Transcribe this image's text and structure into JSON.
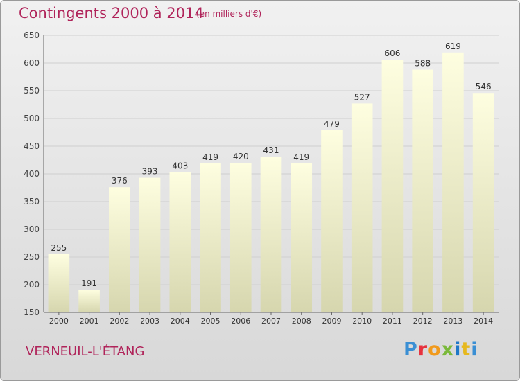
{
  "header": {
    "title": "Contingents 2000 à 2014",
    "subtitle": "(en milliers d'€)"
  },
  "footer": {
    "place": "VERNEUIL-L'ÉTANG",
    "logo": [
      "P",
      "r",
      "o",
      "x",
      "i",
      "t",
      "i"
    ]
  },
  "colors": {
    "title": "#b0245a",
    "bar_top": "#fefee0",
    "bar_bottom": "#d6d6ae",
    "grid": "#cfcfcf"
  },
  "chart_data": {
    "type": "bar",
    "title": "Contingents 2000 à 2014",
    "subtitle": "(en milliers d'€)",
    "xlabel": "",
    "ylabel": "",
    "categories": [
      "2000",
      "2001",
      "2002",
      "2003",
      "2004",
      "2005",
      "2006",
      "2007",
      "2008",
      "2009",
      "2010",
      "2011",
      "2012",
      "2013",
      "2014"
    ],
    "values": [
      255,
      191,
      376,
      393,
      403,
      419,
      420,
      431,
      419,
      479,
      527,
      606,
      588,
      619,
      546
    ],
    "ylim": [
      150,
      650
    ],
    "yticks": [
      150,
      200,
      250,
      300,
      350,
      400,
      450,
      500,
      550,
      600,
      650
    ],
    "grid": true,
    "data_labels": true
  }
}
